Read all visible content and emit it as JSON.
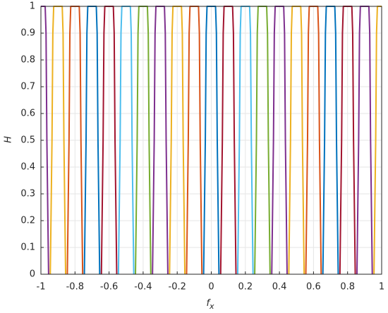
{
  "chart_data": {
    "type": "line",
    "xlabel": "f",
    "xlabel_subscript": "x",
    "ylabel": "H",
    "xlim": [
      -1,
      1
    ],
    "ylim": [
      0,
      1
    ],
    "xticks": [
      -1,
      -0.8,
      -0.6,
      -0.4,
      -0.2,
      0,
      0.2,
      0.4,
      0.6,
      0.8,
      1
    ],
    "yticks": [
      0,
      0.1,
      0.2,
      0.3,
      0.4,
      0.5,
      0.6,
      0.7,
      0.8,
      0.9,
      1
    ],
    "grid": true,
    "series": [
      {
        "color": "#7E2F8E",
        "x": [
          -1,
          -0.975,
          -0.97,
          -0.965,
          -0.955
        ],
        "values": [
          1,
          1,
          0.9,
          0.5,
          0
        ]
      },
      {
        "color": "#EDB120",
        "x": [
          -0.945,
          -0.935,
          -0.93,
          -0.925,
          -0.875,
          -0.87,
          -0.865,
          -0.855
        ],
        "values": [
          0,
          0.5,
          0.9,
          1,
          1,
          0.9,
          0.5,
          0
        ]
      },
      {
        "color": "#D95319",
        "x": [
          -0.845,
          -0.835,
          -0.83,
          -0.825,
          -0.775,
          -0.77,
          -0.765,
          -0.755
        ],
        "values": [
          0,
          0.5,
          0.9,
          1,
          1,
          0.9,
          0.5,
          0
        ]
      },
      {
        "color": "#0072BD",
        "x": [
          -0.745,
          -0.735,
          -0.73,
          -0.725,
          -0.675,
          -0.67,
          -0.665,
          -0.655
        ],
        "values": [
          0,
          0.5,
          0.9,
          1,
          1,
          0.9,
          0.5,
          0
        ]
      },
      {
        "color": "#A2142F",
        "x": [
          -0.645,
          -0.635,
          -0.63,
          -0.625,
          -0.575,
          -0.57,
          -0.565,
          -0.555
        ],
        "values": [
          0,
          0.5,
          0.9,
          1,
          1,
          0.9,
          0.5,
          0
        ]
      },
      {
        "color": "#4DBEEE",
        "x": [
          -0.545,
          -0.535,
          -0.53,
          -0.525,
          -0.475,
          -0.47,
          -0.465,
          -0.455
        ],
        "values": [
          0,
          0.5,
          0.9,
          1,
          1,
          0.9,
          0.5,
          0
        ]
      },
      {
        "color": "#77AC30",
        "x": [
          -0.445,
          -0.435,
          -0.43,
          -0.425,
          -0.375,
          -0.37,
          -0.365,
          -0.355
        ],
        "values": [
          0,
          0.5,
          0.9,
          1,
          1,
          0.9,
          0.5,
          0
        ]
      },
      {
        "color": "#7E2F8E",
        "x": [
          -0.345,
          -0.335,
          -0.33,
          -0.325,
          -0.275,
          -0.27,
          -0.265,
          -0.255
        ],
        "values": [
          0,
          0.5,
          0.9,
          1,
          1,
          0.9,
          0.5,
          0
        ]
      },
      {
        "color": "#EDB120",
        "x": [
          -0.245,
          -0.235,
          -0.23,
          -0.225,
          -0.175,
          -0.17,
          -0.165,
          -0.155
        ],
        "values": [
          0,
          0.5,
          0.9,
          1,
          1,
          0.9,
          0.5,
          0
        ]
      },
      {
        "color": "#D95319",
        "x": [
          -0.145,
          -0.135,
          -0.13,
          -0.125,
          -0.075,
          -0.07,
          -0.065,
          -0.055
        ],
        "values": [
          0,
          0.5,
          0.9,
          1,
          1,
          0.9,
          0.5,
          0
        ]
      },
      {
        "color": "#0072BD",
        "x": [
          -0.045,
          -0.035,
          -0.03,
          -0.025,
          0.025,
          0.03,
          0.035,
          0.045
        ],
        "values": [
          0,
          0.5,
          0.9,
          1,
          1,
          0.9,
          0.5,
          0
        ]
      },
      {
        "color": "#A2142F",
        "x": [
          0.055,
          0.065,
          0.07,
          0.075,
          0.125,
          0.13,
          0.135,
          0.145
        ],
        "values": [
          0,
          0.5,
          0.9,
          1,
          1,
          0.9,
          0.5,
          0
        ]
      },
      {
        "color": "#4DBEEE",
        "x": [
          0.155,
          0.165,
          0.17,
          0.175,
          0.225,
          0.23,
          0.235,
          0.245
        ],
        "values": [
          0,
          0.5,
          0.9,
          1,
          1,
          0.9,
          0.5,
          0
        ]
      },
      {
        "color": "#77AC30",
        "x": [
          0.255,
          0.265,
          0.27,
          0.275,
          0.325,
          0.33,
          0.335,
          0.345
        ],
        "values": [
          0,
          0.5,
          0.9,
          1,
          1,
          0.9,
          0.5,
          0
        ]
      },
      {
        "color": "#7E2F8E",
        "x": [
          0.355,
          0.365,
          0.37,
          0.375,
          0.425,
          0.43,
          0.435,
          0.445
        ],
        "values": [
          0,
          0.5,
          0.9,
          1,
          1,
          0.9,
          0.5,
          0
        ]
      },
      {
        "color": "#EDB120",
        "x": [
          0.455,
          0.465,
          0.47,
          0.475,
          0.525,
          0.53,
          0.535,
          0.545
        ],
        "values": [
          0,
          0.5,
          0.9,
          1,
          1,
          0.9,
          0.5,
          0
        ]
      },
      {
        "color": "#D95319",
        "x": [
          0.555,
          0.565,
          0.57,
          0.575,
          0.625,
          0.63,
          0.635,
          0.645
        ],
        "values": [
          0,
          0.5,
          0.9,
          1,
          1,
          0.9,
          0.5,
          0
        ]
      },
      {
        "color": "#0072BD",
        "x": [
          0.655,
          0.665,
          0.67,
          0.675,
          0.725,
          0.73,
          0.735,
          0.745
        ],
        "values": [
          0,
          0.5,
          0.9,
          1,
          1,
          0.9,
          0.5,
          0
        ]
      },
      {
        "color": "#A2142F",
        "x": [
          0.755,
          0.765,
          0.77,
          0.775,
          0.825,
          0.83,
          0.835,
          0.845
        ],
        "values": [
          0,
          0.5,
          0.9,
          1,
          1,
          0.9,
          0.5,
          0
        ]
      },
      {
        "color": "#7E2F8E",
        "x": [
          0.855,
          0.865,
          0.87,
          0.875,
          0.925,
          0.93,
          0.935,
          0.945
        ],
        "values": [
          0,
          0.5,
          0.9,
          1,
          1,
          0.9,
          0.5,
          0
        ]
      },
      {
        "color": "#EDB120",
        "x": [
          0.955,
          0.965,
          0.97,
          0.975,
          1
        ],
        "values": [
          0,
          0.5,
          0.9,
          1,
          1
        ]
      }
    ]
  }
}
